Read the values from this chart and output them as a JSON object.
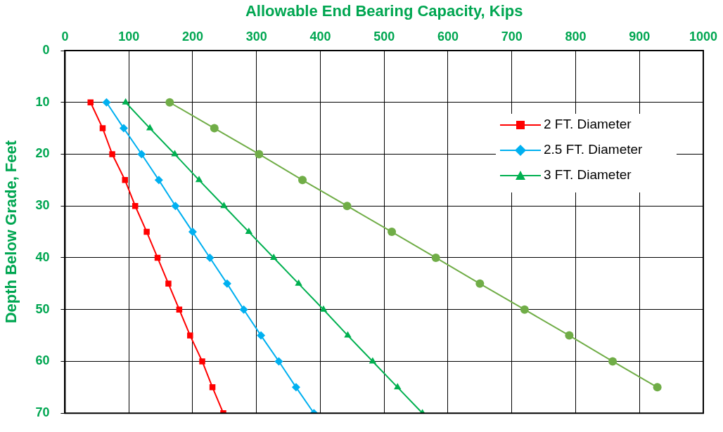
{
  "chart_data": {
    "type": "line",
    "xlabel": "Allowable End Bearing Capacity, Kips",
    "ylabel": "Depth Below Grade, Feet",
    "xlim": [
      0,
      1000
    ],
    "xticks": [
      0,
      100,
      200,
      300,
      400,
      500,
      600,
      700,
      800,
      900,
      1000
    ],
    "ylim": [
      70,
      0
    ],
    "yticks": [
      0,
      10,
      20,
      30,
      40,
      50,
      60,
      70
    ],
    "grid": true,
    "legend": "top right",
    "line_style": "solid",
    "series": [
      {
        "name": "2 FT. Diameter",
        "color": "#ff0000",
        "marker": "square",
        "x": [
          40,
          59,
          74,
          94,
          110,
          128,
          145,
          162,
          179,
          196,
          215,
          231,
          248
        ],
        "values": [
          10,
          15,
          20,
          25,
          30,
          35,
          40,
          45,
          50,
          55,
          60,
          65,
          70
        ]
      },
      {
        "name": "2.5 FT. Diameter",
        "color": "#00b0f0",
        "marker": "diamond",
        "x": [
          65,
          92,
          120,
          147,
          173,
          200,
          227,
          254,
          280,
          307,
          335,
          362,
          390
        ],
        "values": [
          10,
          15,
          20,
          25,
          30,
          35,
          40,
          45,
          50,
          55,
          60,
          65,
          70
        ]
      },
      {
        "name": "3 FT. Diameter",
        "color": "#00b050",
        "marker": "triangle",
        "x": [
          95,
          133,
          172,
          210,
          249,
          288,
          327,
          366,
          405,
          443,
          482,
          521,
          560
        ],
        "values": [
          10,
          15,
          20,
          25,
          30,
          35,
          40,
          45,
          50,
          55,
          60,
          65,
          70
        ]
      },
      {
        "color": "#70ad47",
        "marker": "circle",
        "x": [
          164,
          234,
          304,
          372,
          442,
          512,
          581,
          650,
          720,
          790,
          858,
          928
        ],
        "values": [
          10,
          15,
          20,
          25,
          30,
          35,
          40,
          45,
          50,
          55,
          60,
          65
        ]
      }
    ]
  }
}
